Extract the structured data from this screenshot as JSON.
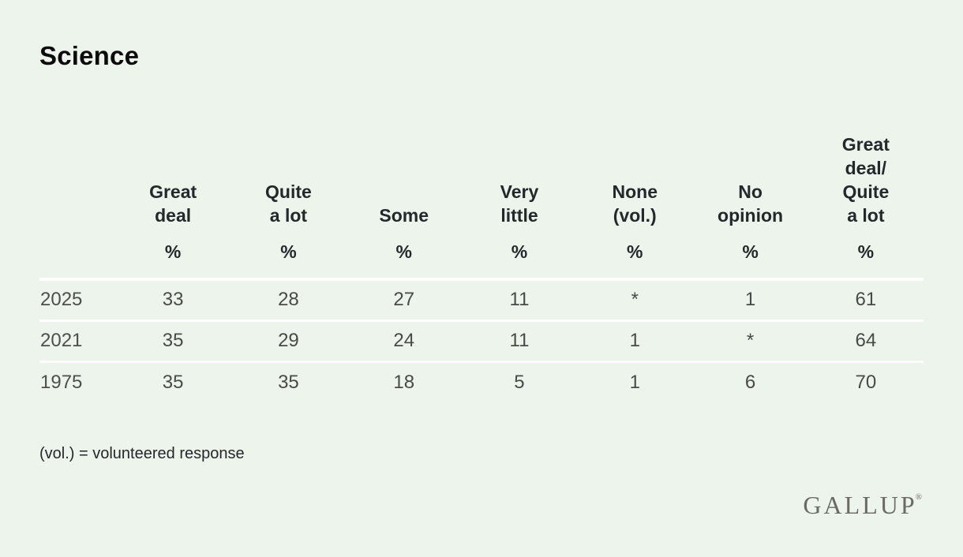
{
  "title": "Science",
  "columns_display": [
    "Great\ndeal",
    "Quite\na lot",
    "Some",
    "Very\nlittle",
    "None\n(vol.)",
    "No\nopinion",
    "Great\ndeal/\nQuite\na lot"
  ],
  "chart_data": {
    "type": "table",
    "title": "Science",
    "columns": [
      "Great deal",
      "Quite a lot",
      "Some",
      "Very little",
      "None (vol.)",
      "No opinion",
      "Great deal/Quite a lot"
    ],
    "unit_row": [
      "%",
      "%",
      "%",
      "%",
      "%",
      "%",
      "%"
    ],
    "rows": [
      {
        "year": "2025",
        "values": [
          "33",
          "28",
          "27",
          "11",
          "*",
          "1",
          "61"
        ]
      },
      {
        "year": "2021",
        "values": [
          "35",
          "29",
          "24",
          "11",
          "1",
          "*",
          "64"
        ]
      },
      {
        "year": "1975",
        "values": [
          "35",
          "35",
          "18",
          "5",
          "1",
          "6",
          "70"
        ]
      }
    ],
    "footnote": "(vol.) = volunteered response"
  },
  "footer": {
    "footnote": "(vol.) = volunteered response",
    "logo_text": "GALLUP",
    "registered_mark": "®"
  },
  "colors": {
    "background": "#edf4eb",
    "title_text": "#0b0b0b",
    "header_text": "#23282b",
    "body_text": "#474b49",
    "separator": "#ffffff",
    "logo": "#6b6b63"
  }
}
